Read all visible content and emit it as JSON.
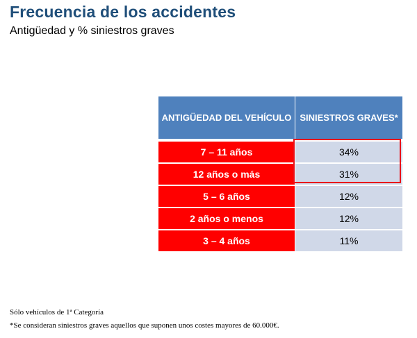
{
  "slide": {
    "title": "Frecuencia de los accidentes",
    "subtitle": "Antigüedad y % siniestros graves"
  },
  "table": {
    "headers": [
      "ANTIGÜEDAD DEL VEHÍCULO",
      "SINIESTROS GRAVES*"
    ],
    "rows": [
      {
        "age": "7 – 11 años",
        "pct": "34%"
      },
      {
        "age": "12 años o más",
        "pct": "31%"
      },
      {
        "age": "5 – 6 años",
        "pct": "12%"
      },
      {
        "age": "2 años o menos",
        "pct": "12%"
      },
      {
        "age": "3 – 4 años",
        "pct": "11%"
      }
    ],
    "highlighted_rows": 2
  },
  "footnotes": [
    "Sólo vehículos de 1ª Categoría",
    "*Se consideran siniestros graves aquellos que suponen unos costes mayores de 60.000€."
  ],
  "colors": {
    "title": "#1f4e79",
    "header_bg": "#4f81bd",
    "age_bg": "#ff0000",
    "pct_bg": "#d0d8e8",
    "highlight_border": "#e8121a"
  }
}
